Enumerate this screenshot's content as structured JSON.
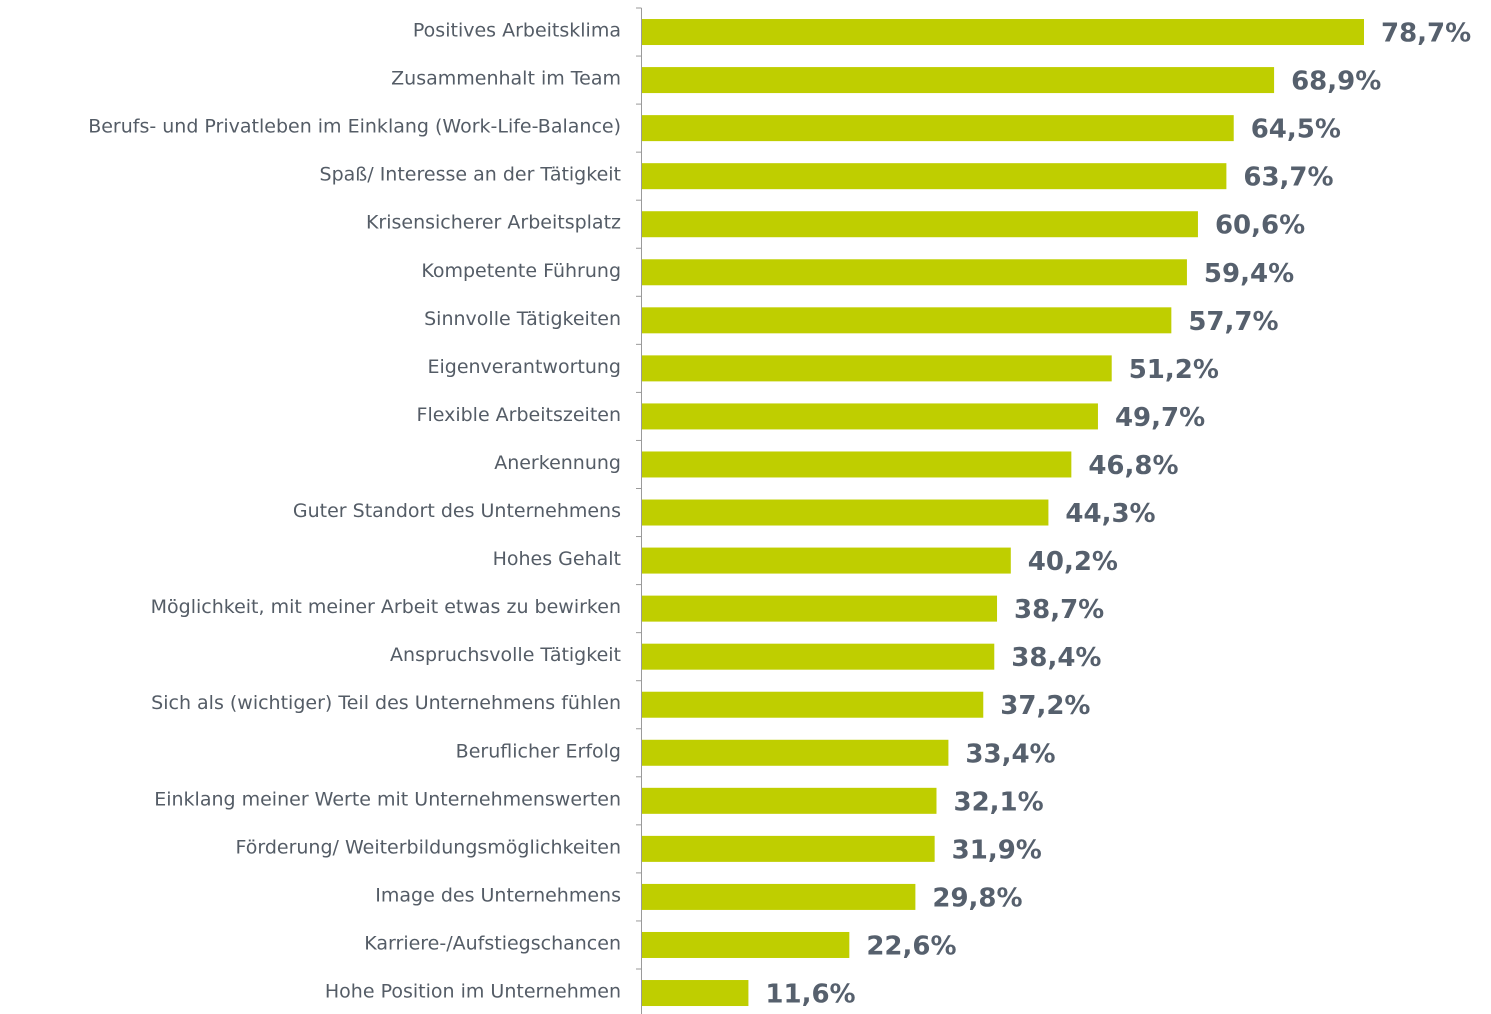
{
  "chart_data": {
    "type": "bar",
    "orientation": "horizontal",
    "categories": [
      "Positives Arbeitsklima",
      "Zusammenhalt im Team",
      "Berufs- und Privatleben im Einklang (Work-Life-Balance)",
      "Spaß/ Interesse an der Tätigkeit",
      "Krisensicherer Arbeitsplatz",
      "Kompetente Führung",
      "Sinnvolle Tätigkeiten",
      "Eigenverantwortung",
      "Flexible Arbeitszeiten",
      "Anerkennung",
      "Guter Standort des Unternehmens",
      "Hohes Gehalt",
      "Möglichkeit, mit meiner Arbeit etwas zu bewirken",
      "Anspruchsvolle Tätigkeit",
      "Sich als (wichtiger) Teil des Unternehmens fühlen",
      "Beruflicher Erfolg",
      "Einklang meiner Werte mit Unternehmenswerten",
      "Förderung/ Weiterbildungsmöglichkeiten",
      "Image des Unternehmens",
      "Karriere-/Aufstiegschancen",
      "Hohe Position im Unternehmen"
    ],
    "values": [
      78.7,
      68.9,
      64.5,
      63.7,
      60.6,
      59.4,
      57.7,
      51.2,
      49.7,
      46.8,
      44.3,
      40.2,
      38.7,
      38.4,
      37.2,
      33.4,
      32.1,
      31.9,
      29.8,
      22.6,
      11.6
    ],
    "value_labels": [
      "78,7%",
      "68,9%",
      "64,5%",
      "63,7%",
      "60,6%",
      "59,4%",
      "57,7%",
      "51,2%",
      "49,7%",
      "46,8%",
      "44,3%",
      "40,2%",
      "38,7%",
      "38,4%",
      "37,2%",
      "33,4%",
      "32,1%",
      "31,9%",
      "29,8%",
      "22,6%",
      "11,6%"
    ],
    "color": "#bfce00",
    "xlim": [
      0,
      80
    ]
  }
}
